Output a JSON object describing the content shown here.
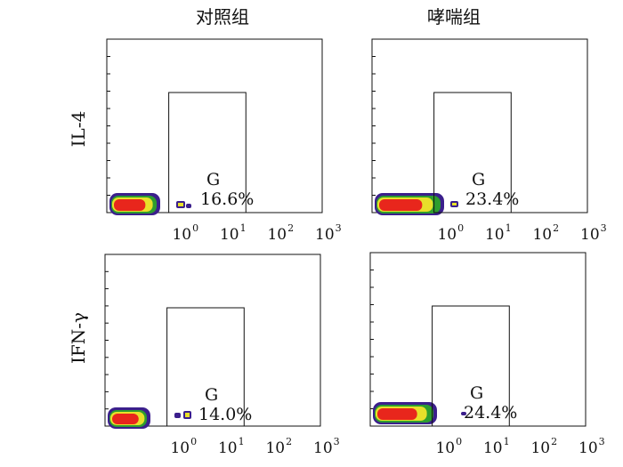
{
  "columns": [
    "对照组",
    "哮喘组"
  ],
  "rows": [
    "IL-4",
    "IFN-γ"
  ],
  "tick_base": "10",
  "tick_exponents": [
    "0",
    "1",
    "2",
    "3"
  ],
  "colors": {
    "axis": "#111111",
    "population_edge": "#3b1f8c",
    "population_mid": "#2e9d2e",
    "population_ring": "#e8e02a",
    "population_core": "#e8261c"
  },
  "chart_data": [
    {
      "type": "scatter",
      "row": "IL-4",
      "column": "对照组",
      "xscale": "log",
      "xlim": [
        0.03,
        1000
      ],
      "gate": {
        "label": "G",
        "percent": "16.6%",
        "x_range": [
          0.6,
          25
        ]
      },
      "tick_labels": [
        "10^0",
        "10^1",
        "10^2",
        "10^3"
      ]
    },
    {
      "type": "scatter",
      "row": "IL-4",
      "column": "哮喘组",
      "xscale": "log",
      "xlim": [
        0.03,
        1000
      ],
      "gate": {
        "label": "G",
        "percent": "23.4%",
        "x_range": [
          0.6,
          25
        ]
      },
      "tick_labels": [
        "10^0",
        "10^1",
        "10^2",
        "10^3"
      ]
    },
    {
      "type": "scatter",
      "row": "IFN-γ",
      "column": "对照组",
      "xscale": "log",
      "xlim": [
        0.03,
        1000
      ],
      "gate": {
        "label": "G",
        "percent": "14.0%",
        "x_range": [
          0.6,
          25
        ]
      },
      "tick_labels": [
        "10^0",
        "10^1",
        "10^2",
        "10^3"
      ]
    },
    {
      "type": "scatter",
      "row": "IFN-γ",
      "column": "哮喘组",
      "xscale": "log",
      "xlim": [
        0.03,
        1000
      ],
      "gate": {
        "label": "G",
        "percent": "24.4%",
        "x_range": [
          0.6,
          25
        ]
      },
      "tick_labels": [
        "10^0",
        "10^1",
        "10^2",
        "10^3"
      ]
    }
  ]
}
